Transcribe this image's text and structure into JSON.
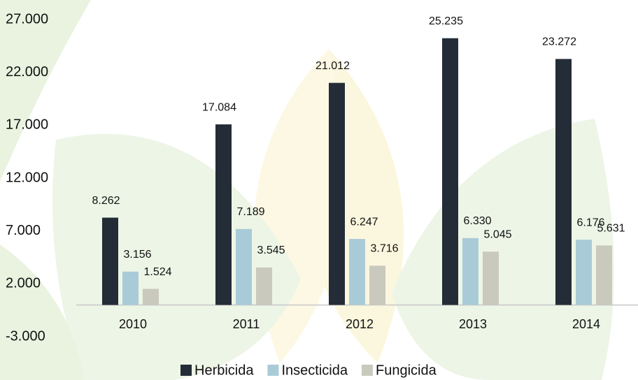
{
  "chart_data": {
    "type": "bar",
    "categories": [
      "2010",
      "2011",
      "2012",
      "2013",
      "2014"
    ],
    "series": [
      {
        "name": "Herbicida",
        "color": "#242c37",
        "values": [
          8262,
          17084,
          21012,
          25235,
          23272
        ],
        "value_labels": [
          "8.262",
          "17.084",
          "21.012",
          "25.235",
          "23.272"
        ]
      },
      {
        "name": "Insecticida",
        "color": "#a9cbd8",
        "values": [
          3156,
          7189,
          6247,
          6330,
          6176
        ],
        "value_labels": [
          "3.156",
          "7.189",
          "6.247",
          "6.330",
          "6.176"
        ]
      },
      {
        "name": "Fungicida",
        "color": "#c9c9bd",
        "values": [
          1524,
          3545,
          3716,
          5045,
          5631
        ],
        "value_labels": [
          "1.524",
          "3.545",
          "3.716",
          "5.045",
          "5.631"
        ]
      }
    ],
    "ylim": [
      -3000,
      27000
    ],
    "yticks": [
      {
        "value": -3000,
        "label": "-3.000"
      },
      {
        "value": 2000,
        "label": "2.000"
      },
      {
        "value": 7000,
        "label": "7.000"
      },
      {
        "value": 12000,
        "label": "12.000"
      },
      {
        "value": 17000,
        "label": "17.000"
      },
      {
        "value": 22000,
        "label": "22.000"
      },
      {
        "value": 27000,
        "label": "27.000"
      }
    ],
    "legend": "bottom"
  }
}
